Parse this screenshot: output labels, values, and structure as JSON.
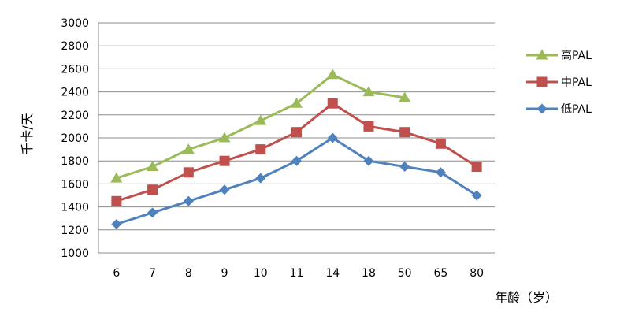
{
  "chart_data": {
    "type": "line",
    "title": "",
    "xlabel": "年龄（岁）",
    "ylabel": "千卡/天",
    "categories": [
      "6",
      "7",
      "8",
      "9",
      "10",
      "11",
      "14",
      "18",
      "50",
      "65",
      "80"
    ],
    "ylim": [
      1000,
      3000
    ],
    "yticks": [
      1000,
      1200,
      1400,
      1600,
      1800,
      2000,
      2200,
      2400,
      2600,
      2800,
      3000
    ],
    "grid": true,
    "legend_position": "right",
    "series": [
      {
        "name": "高PAL",
        "color": "#9bbb59",
        "marker": "triangle",
        "values": [
          1650,
          1750,
          1900,
          2000,
          2150,
          2300,
          2550,
          2400,
          2350,
          null,
          null
        ]
      },
      {
        "name": "中PAL",
        "color": "#c0504d",
        "marker": "square",
        "values": [
          1450,
          1550,
          1700,
          1800,
          1900,
          2050,
          2300,
          2100,
          2050,
          1950,
          1750
        ]
      },
      {
        "name": "低PAL",
        "color": "#4f81bd",
        "marker": "diamond",
        "values": [
          1250,
          1350,
          1450,
          1550,
          1650,
          1800,
          2000,
          1800,
          1750,
          1700,
          1500
        ]
      }
    ]
  }
}
